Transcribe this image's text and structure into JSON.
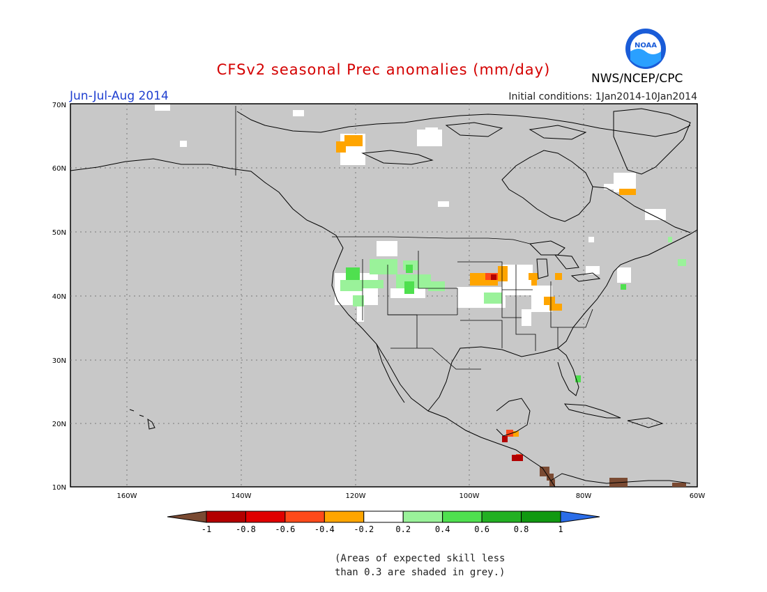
{
  "title": "CFSv2 seasonal Prec anomalies (mm/day)",
  "season": "Jun-Jul-Aug 2014",
  "initial_conditions": "Initial conditions: 1Jan2014-10Jan2014",
  "agency": "NWS/NCEP/CPC",
  "logo_text": "NOAA",
  "lat_labels": [
    "70N",
    "60N",
    "50N",
    "40N",
    "30N",
    "20N",
    "10N"
  ],
  "lon_labels": [
    "160W",
    "140W",
    "120W",
    "100W",
    "80W",
    "60W"
  ],
  "colorbar": {
    "labels": [
      "-1",
      "-0.8",
      "-0.6",
      "-0.4",
      "-0.2",
      "0.2",
      "0.4",
      "0.6",
      "0.8",
      "1"
    ],
    "colors": [
      "#7a4a32",
      "#b30000",
      "#e00000",
      "#ff4a1a",
      "#ffa500",
      "#ffffff",
      "#9af29a",
      "#4fe04f",
      "#22b022",
      "#119911",
      "#2b6de8"
    ]
  },
  "note": [
    "(Areas of expected skill less",
    "than 0.3 are shaded in grey.)"
  ],
  "colors": {
    "grey": "#c8c8c8",
    "title": "#d40000",
    "season": "#1f3fd0"
  }
}
